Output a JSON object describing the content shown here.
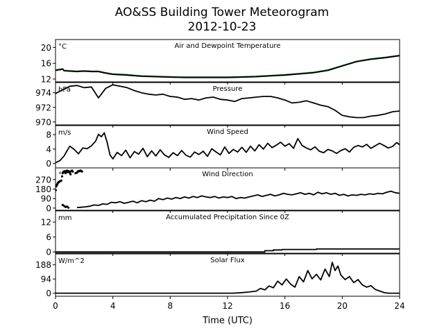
{
  "figure": {
    "title_line1": "AO&SS Building Tower Meteorogram",
    "title_line2": "2012-10-23",
    "xlabel": "Time (UTC)"
  },
  "chart_data": {
    "type": "line",
    "x_axis": {
      "label": "Time (UTC)",
      "range": [
        0,
        24
      ],
      "ticks": [
        0,
        4,
        8,
        12,
        16,
        20,
        24
      ]
    },
    "panels": [
      {
        "id": "temperature",
        "title": "Air and Dewpoint Temperature",
        "unit": "°C",
        "ylim": [
          11.3,
          22.0
        ],
        "yticks": [
          12,
          16,
          20
        ],
        "series": [
          {
            "color": "#007f00",
            "style": "line",
            "x": [
              0,
              0.5,
              0.6,
              1,
              1.5,
              2,
              2.5,
              3,
              3.5,
              4,
              5,
              6,
              7,
              8,
              9,
              10,
              11,
              12,
              13,
              14,
              15,
              16,
              17,
              18,
              19,
              20,
              21,
              22,
              23,
              24
            ],
            "y": [
              14.3,
              14.6,
              14.2,
              14.1,
              14.0,
              14.1,
              14.0,
              14.0,
              13.6,
              13.3,
              13.1,
              12.8,
              12.7,
              12.6,
              12.5,
              12.5,
              12.5,
              12.5,
              12.6,
              12.7,
              12.9,
              13.1,
              13.4,
              13.7,
              14.3,
              15.4,
              16.5,
              17.1,
              17.5,
              18.0
            ]
          },
          {
            "color": "#000000",
            "style": "line",
            "x": [
              0,
              0.5,
              0.6,
              1,
              1.5,
              2,
              2.5,
              3,
              3.5,
              4,
              5,
              6,
              7,
              8,
              9,
              10,
              11,
              12,
              13,
              14,
              15,
              16,
              17,
              18,
              19,
              20,
              21,
              22,
              23,
              24
            ],
            "y": [
              14.2,
              14.5,
              14.1,
              14.0,
              13.9,
              14.0,
              13.9,
              13.9,
              13.5,
              13.2,
              13.0,
              12.7,
              12.6,
              12.5,
              12.4,
              12.4,
              12.4,
              12.4,
              12.5,
              12.6,
              12.8,
              13.0,
              13.3,
              13.6,
              14.2,
              15.3,
              16.4,
              17.0,
              17.4,
              17.9
            ]
          }
        ]
      },
      {
        "id": "pressure",
        "title": "Pressure",
        "unit": "hPa",
        "ylim": [
          969.6,
          975.4
        ],
        "yticks": [
          970,
          972,
          974
        ],
        "series": [
          {
            "color": "#000000",
            "style": "line",
            "x": [
              0,
              0.5,
              1,
              1.5,
              2,
              2.5,
              3,
              3.5,
              4,
              4.5,
              5,
              5.5,
              6,
              6.5,
              7,
              7.5,
              8,
              8.5,
              9,
              9.5,
              10,
              10.5,
              11,
              11.5,
              12,
              12.5,
              13,
              13.5,
              14,
              14.5,
              15,
              15.5,
              16,
              16.5,
              17,
              17.5,
              18,
              18.5,
              19,
              19.5,
              20,
              20.5,
              21,
              21.5,
              22,
              22.5,
              23,
              23.5,
              24
            ],
            "y": [
              973.9,
              974.4,
              974.9,
              975.0,
              974.7,
              974.8,
              973.3,
              974.6,
              975.1,
              974.9,
              974.7,
              974.3,
              974.0,
              973.8,
              973.7,
              973.8,
              973.5,
              973.4,
              973.1,
              973.2,
              973.0,
              973.3,
              973.4,
              973.1,
              973.0,
              972.8,
              973.2,
              973.3,
              973.4,
              973.5,
              973.5,
              973.3,
              973.0,
              972.6,
              972.7,
              972.9,
              972.6,
              972.3,
              972.1,
              971.6,
              970.9,
              970.7,
              970.6,
              970.6,
              970.8,
              970.9,
              971.1,
              971.4,
              971.5
            ]
          }
        ]
      },
      {
        "id": "wind_speed",
        "title": "Wind Speed",
        "unit": "m/s",
        "ylim": [
          -1.2,
          10.5
        ],
        "yticks": [
          0,
          4,
          8
        ],
        "series": [
          {
            "color": "#000000",
            "style": "line",
            "x": [
              0,
              0.3,
              0.6,
              0.8,
              1.0,
              1.3,
              1.6,
              1.9,
              2.2,
              2.5,
              2.8,
              3.0,
              3.2,
              3.4,
              3.6,
              3.8,
              4.0,
              4.3,
              4.6,
              4.9,
              5.2,
              5.5,
              5.8,
              6.1,
              6.4,
              6.7,
              7.0,
              7.3,
              7.6,
              7.9,
              8.2,
              8.5,
              8.8,
              9.1,
              9.4,
              9.7,
              10.0,
              10.3,
              10.6,
              10.9,
              11.2,
              11.5,
              11.8,
              12.1,
              12.4,
              12.7,
              13.0,
              13.3,
              13.6,
              13.9,
              14.2,
              14.5,
              14.8,
              15.1,
              15.4,
              15.7,
              16.0,
              16.3,
              16.6,
              16.9,
              17.2,
              17.5,
              17.8,
              18.1,
              18.4,
              18.7,
              19.0,
              19.3,
              19.6,
              19.9,
              20.2,
              20.5,
              20.8,
              21.1,
              21.4,
              21.7,
              22.0,
              22.3,
              22.6,
              22.9,
              23.2,
              23.5,
              23.8,
              24.0
            ],
            "y": [
              0.2,
              0.8,
              2.1,
              3.5,
              4.8,
              3.9,
              2.7,
              4.3,
              4.1,
              4.9,
              6.2,
              8.1,
              7.4,
              8.5,
              5.9,
              2.4,
              1.3,
              3.1,
              2.2,
              3.7,
              1.6,
              3.3,
              2.6,
              4.2,
              1.9,
              3.5,
              2.1,
              3.8,
              2.4,
              1.7,
              3.0,
              2.2,
              3.6,
              2.3,
              1.8,
              3.2,
              2.5,
              3.4,
              2.0,
              4.1,
              3.2,
              2.4,
              4.6,
              2.8,
              3.9,
              3.2,
              4.5,
              3.1,
              4.8,
              3.5,
              5.2,
              4.0,
              5.6,
              4.4,
              5.1,
              5.9,
              4.8,
              5.5,
              4.2,
              6.9,
              5.0,
              4.3,
              3.8,
              4.6,
              3.4,
              3.0,
              3.9,
              3.5,
              2.8,
              3.6,
              4.1,
              3.2,
              4.5,
              5.0,
              4.6,
              5.3,
              4.2,
              4.9,
              5.6,
              5.0,
              4.3,
              4.7,
              5.8,
              5.2
            ]
          }
        ]
      },
      {
        "id": "wind_direction",
        "title": "Wind Direction",
        "unit": "°",
        "ylim": [
          -20,
          380
        ],
        "yticks": [
          0,
          90,
          180,
          270
        ],
        "series": [
          {
            "color": "#000000",
            "style": "dots",
            "x": [
              0.02,
              0.06,
              0.1,
              0.14,
              0.18,
              0.22,
              0.27,
              0.33,
              0.4,
              0.46,
              0.5,
              0.55,
              0.6,
              0.65,
              0.7,
              0.75,
              0.8,
              0.85,
              0.9,
              0.95,
              1.0,
              1.05,
              1.1,
              1.15,
              1.2,
              1.4,
              1.5,
              1.55,
              1.6,
              1.65,
              1.7,
              1.75,
              1.8,
              1.85,
              0.5,
              0.6,
              0.7,
              0.8,
              0.9
            ],
            "y": [
              170,
              205,
              220,
              230,
              240,
              245,
              250,
              255,
              260,
              300,
              330,
              345,
              340,
              350,
              330,
              345,
              355,
              340,
              350,
              345,
              335,
              320,
              350,
              355,
              345,
              330,
              335,
              345,
              350,
              348,
              352,
              355,
              350,
              345,
              30,
              20,
              10,
              15,
              5
            ]
          },
          {
            "color": "#000000",
            "style": "line",
            "x": [
              1.5,
              1.8,
              2.1,
              2.4,
              2.7,
              3.0,
              3.3,
              3.6,
              3.9,
              4.2,
              4.5,
              4.8,
              5.1,
              5.4,
              5.7,
              6.0,
              6.3,
              6.6,
              6.9,
              7.2,
              7.5,
              7.8,
              8.1,
              8.4,
              8.7,
              9.0,
              9.3,
              9.6,
              9.9,
              10.2,
              10.5,
              10.8,
              11.1,
              11.4,
              11.7,
              12.0,
              12.3,
              12.6,
              12.9,
              13.2,
              13.5,
              13.8,
              14.1,
              14.4,
              14.7,
              15.0,
              15.3,
              15.6,
              15.9,
              16.2,
              16.5,
              16.8,
              17.1,
              17.4,
              17.7,
              18.0,
              18.3,
              18.6,
              18.9,
              19.2,
              19.5,
              19.8,
              20.1,
              20.4,
              20.7,
              21.0,
              21.3,
              21.6,
              21.9,
              22.2,
              22.5,
              22.8,
              23.1,
              23.4,
              23.7,
              24.0
            ],
            "y": [
              5,
              8,
              12,
              18,
              30,
              25,
              40,
              35,
              55,
              50,
              60,
              45,
              55,
              65,
              50,
              70,
              60,
              75,
              65,
              90,
              80,
              95,
              85,
              100,
              90,
              105,
              95,
              110,
              100,
              115,
              105,
              100,
              110,
              95,
              105,
              100,
              110,
              90,
              100,
              95,
              105,
              115,
              125,
              110,
              120,
              130,
              115,
              125,
              140,
              130,
              125,
              135,
              145,
              130,
              140,
              125,
              150,
              135,
              145,
              130,
              140,
              120,
              130,
              115,
              125,
              120,
              130,
              125,
              135,
              130,
              140,
              135,
              150,
              160,
              145,
              140
            ]
          }
        ]
      },
      {
        "id": "precipitation",
        "title": "Accumulated Precipitation Since 0Z",
        "unit": "mm",
        "ylim": [
          -0.5,
          16.5
        ],
        "yticks": [
          0,
          6,
          12
        ],
        "series": [
          {
            "color": "#000000",
            "style": "step",
            "x": [
              0,
              14.4,
              14.6,
              15.2,
              15.8,
              17.6,
              18.2,
              24
            ],
            "y": [
              0,
              0,
              0.5,
              0.8,
              1.0,
              1.0,
              1.2,
              1.2
            ]
          }
        ]
      },
      {
        "id": "solar_flux",
        "title": "Solar Flux",
        "unit": "W/m^2",
        "ylim": [
          -20,
          260
        ],
        "yticks": [
          0,
          94,
          188
        ],
        "series": [
          {
            "color": "#000000",
            "style": "line",
            "x": [
              0,
              12.4,
              13.0,
              13.5,
              14.0,
              14.3,
              14.6,
              14.9,
              15.2,
              15.5,
              15.8,
              16.1,
              16.4,
              16.7,
              17.0,
              17.3,
              17.6,
              17.9,
              18.2,
              18.5,
              18.8,
              19.1,
              19.3,
              19.5,
              19.7,
              19.9,
              20.2,
              20.5,
              20.8,
              21.1,
              21.4,
              21.7,
              22.0,
              22.3,
              22.6,
              22.9,
              23.2,
              24
            ],
            "y": [
              0,
              0,
              4,
              8,
              14,
              32,
              22,
              48,
              36,
              80,
              55,
              94,
              60,
              40,
              110,
              75,
              150,
              95,
              125,
              88,
              160,
              110,
              205,
              150,
              180,
              120,
              90,
              110,
              70,
              90,
              55,
              40,
              50,
              25,
              15,
              5,
              0,
              0
            ]
          }
        ]
      }
    ]
  }
}
